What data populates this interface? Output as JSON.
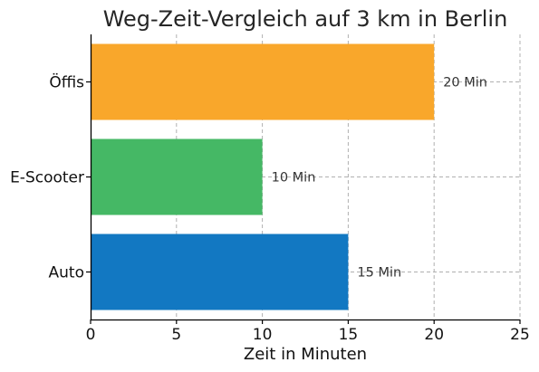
{
  "chart_data": {
    "type": "bar",
    "orientation": "horizontal",
    "title": "Weg-Zeit-Vergleich auf 3 km in Berlin",
    "xlabel": "Zeit in Minuten",
    "ylabel": "",
    "categories": [
      "Auto",
      "E-Scooter",
      "Öffis"
    ],
    "values": [
      15,
      10,
      20
    ],
    "data_labels": [
      "15 Min",
      "10 Min",
      "20 Min"
    ],
    "colors": [
      "#1278c2",
      "#45b865",
      "#f9a72b"
    ],
    "xlim": [
      0,
      25
    ],
    "xticks": [
      0,
      5,
      10,
      15,
      20,
      25
    ],
    "grid": true
  }
}
